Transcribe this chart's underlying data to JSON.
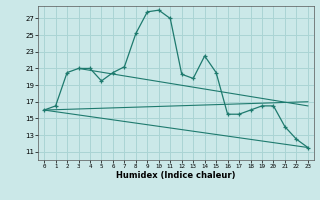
{
  "xlabel": "Humidex (Indice chaleur)",
  "bg_color": "#cbe8e8",
  "grid_color": "#aad4d4",
  "line_color": "#1e7a6e",
  "xlim": [
    -0.5,
    23.5
  ],
  "ylim": [
    10.0,
    28.5
  ],
  "xticks": [
    0,
    1,
    2,
    3,
    4,
    5,
    6,
    7,
    8,
    9,
    10,
    11,
    12,
    13,
    14,
    15,
    16,
    17,
    18,
    19,
    20,
    21,
    22,
    23
  ],
  "yticks": [
    11,
    13,
    15,
    17,
    19,
    21,
    23,
    25,
    27
  ],
  "main_x": [
    0,
    1,
    2,
    3,
    4,
    5,
    6,
    7,
    8,
    9,
    10,
    11,
    12,
    13,
    14,
    15,
    16,
    17,
    18,
    19,
    20,
    21,
    22,
    23
  ],
  "main_y": [
    16,
    16.5,
    20.5,
    21,
    21,
    19.5,
    20.5,
    21.2,
    25.2,
    27.8,
    28.0,
    27.0,
    20.3,
    19.8,
    22.5,
    20.5,
    15.5,
    15.5,
    16.0,
    16.5,
    16.5,
    14.0,
    12.5,
    11.5
  ],
  "trend1_x": [
    0,
    23
  ],
  "trend1_y": [
    16.0,
    11.5
  ],
  "trend2_x": [
    0,
    23
  ],
  "trend2_y": [
    16.0,
    17.0
  ],
  "trend3_x": [
    3,
    23
  ],
  "trend3_y": [
    21.0,
    16.5
  ]
}
